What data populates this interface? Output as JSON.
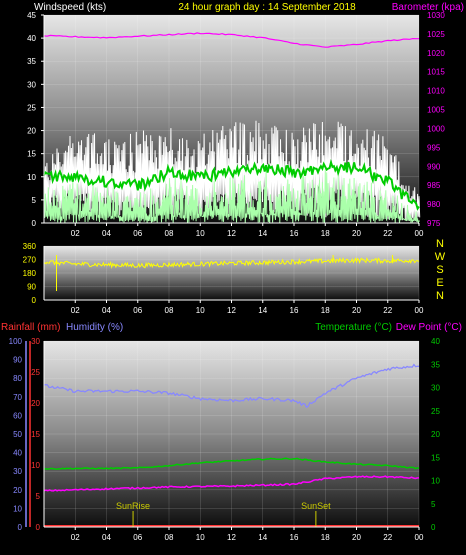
{
  "header": {
    "left_title": "Windspeed (kts)",
    "center_title": "24 hour graph day : 14 September 2018",
    "right_title": "Barometer (kpa)"
  },
  "colors": {
    "wind": "#ffffff",
    "gust_avg": "#00cc00",
    "wind_avg": "#aaffaa",
    "barometer": "#ff00ff",
    "direction": "#ffff00",
    "rain": "#ff3333",
    "humidity": "#8888ff",
    "temperature": "#00cc00",
    "dewpoint": "#ff00ff",
    "sun_marker": "#cccc00"
  },
  "chart_data": [
    {
      "type": "line",
      "title": "24 hour graph day : 14 September 2018",
      "x_ticks": [
        "02",
        "04",
        "06",
        "08",
        "10",
        "12",
        "14",
        "16",
        "18",
        "20",
        "22",
        "00"
      ],
      "left_axis": {
        "label": "Windspeed (kts)",
        "ylim": [
          0,
          45
        ],
        "ticks": [
          "0",
          "5",
          "10",
          "15",
          "20",
          "25",
          "30",
          "35",
          "40",
          "45"
        ]
      },
      "right_axis": {
        "label": "Barometer (kpa)",
        "ylim": [
          975,
          1030
        ],
        "ticks": [
          "975",
          "980",
          "985",
          "990",
          "995",
          "1000",
          "1005",
          "1010",
          "1015",
          "1020",
          "1025",
          "1030"
        ]
      },
      "grid": true,
      "series": [
        {
          "name": "Barometer (kpa)",
          "axis": "right",
          "x": [
            0,
            4,
            8,
            10,
            12,
            14,
            16,
            18,
            20,
            22,
            24
          ],
          "values": [
            1024.5,
            1024,
            1024.8,
            1025.2,
            1024.8,
            1024,
            1022.5,
            1021.5,
            1022.2,
            1023.2,
            1023.8
          ]
        },
        {
          "axis": "left",
          "x": [
            0,
            2,
            4,
            6,
            8,
            10,
            12,
            14,
            16,
            18,
            20,
            22,
            24
          ],
          "values": [
            14,
            22,
            18,
            20,
            21,
            19,
            22,
            23,
            20,
            23,
            22,
            19,
            6
          ]
        },
        {
          "axis": "left",
          "x": [
            0,
            2,
            4,
            6,
            8,
            10,
            12,
            14,
            16,
            18,
            20,
            22,
            24
          ],
          "values": [
            10,
            10,
            9,
            8,
            11,
            10,
            11,
            12,
            11,
            12,
            12,
            9,
            3
          ]
        },
        {
          "axis": "left",
          "x": [
            0,
            2,
            4,
            6,
            8,
            10,
            12,
            14,
            16,
            18,
            20,
            22,
            24
          ],
          "values": [
            4,
            5,
            4,
            3,
            5,
            4,
            5,
            6,
            5,
            6,
            5,
            4,
            1
          ]
        }
      ]
    },
    {
      "type": "scatter",
      "x_ticks": [
        "02",
        "04",
        "06",
        "08",
        "10",
        "12",
        "14",
        "16",
        "18",
        "20",
        "22",
        "00"
      ],
      "left_axis": {
        "ylim": [
          0,
          360
        ],
        "ticks": [
          "0",
          "90",
          "180",
          "270",
          "360"
        ]
      },
      "right_axis": {
        "ticks": [
          "N",
          "W",
          "S",
          "E",
          "N"
        ]
      },
      "grid": true,
      "series": [
        {
          "axis": "left",
          "x": [
            0,
            2,
            4,
            6,
            8,
            10,
            12,
            14,
            16,
            18,
            20,
            22,
            24
          ],
          "values": [
            255,
            240,
            235,
            230,
            235,
            240,
            245,
            250,
            255,
            260,
            265,
            262,
            265
          ]
        }
      ]
    },
    {
      "type": "line",
      "x_ticks": [
        "02",
        "04",
        "06",
        "08",
        "10",
        "12",
        "14",
        "16",
        "18",
        "20",
        "22",
        "00"
      ],
      "left_axis_rain": {
        "label": "Rainfall (mm)",
        "ylim": [
          0,
          30
        ],
        "ticks": [
          "0",
          "5",
          "10",
          "15",
          "20",
          "25",
          "30"
        ]
      },
      "left_axis_humidity": {
        "label": "Humidity (%)",
        "ylim": [
          0,
          100
        ],
        "ticks": [
          "0",
          "10",
          "20",
          "30",
          "40",
          "50",
          "60",
          "70",
          "80",
          "90",
          "100"
        ]
      },
      "right_axis": {
        "label": "Temperature (°C)",
        "label2": "Dew Point (°C)",
        "ylim": [
          0,
          40
        ],
        "ticks": [
          "0",
          "5",
          "10",
          "15",
          "20",
          "25",
          "30",
          "35",
          "40"
        ]
      },
      "grid": true,
      "annotations": [
        {
          "text": "SunRise",
          "x": 5.7
        },
        {
          "text": "SunSet",
          "x": 17.4
        }
      ],
      "series": [
        {
          "name": "Humidity (%)",
          "axis": "humidity",
          "x": [
            0,
            2,
            4,
            6,
            8,
            10,
            12,
            14,
            16,
            16.8,
            18,
            20,
            22,
            24
          ],
          "values": [
            76,
            73,
            73,
            73,
            72,
            69,
            68,
            69,
            68,
            65,
            72,
            80,
            85,
            87
          ]
        },
        {
          "name": "Temperature (°C)",
          "axis": "right",
          "x": [
            0,
            2,
            4,
            6,
            8,
            10,
            12,
            14,
            16,
            18,
            20,
            22,
            24
          ],
          "values": [
            12.5,
            12.6,
            12.6,
            12.7,
            13.2,
            13.8,
            14.2,
            14.6,
            14.7,
            14.0,
            13.5,
            13.2,
            12.6
          ]
        },
        {
          "name": "Dew Point (°C)",
          "axis": "right",
          "x": [
            0,
            2,
            4,
            6,
            8,
            10,
            12,
            14,
            16,
            18,
            20,
            22,
            24
          ],
          "values": [
            7.8,
            8.0,
            8.2,
            8.4,
            8.6,
            8.7,
            8.8,
            9.0,
            9.2,
            10.4,
            10.8,
            10.8,
            10.5
          ]
        },
        {
          "name": "Rainfall (mm)",
          "axis": "rain",
          "x": [
            0,
            24
          ],
          "values": [
            0,
            0
          ]
        }
      ]
    }
  ]
}
